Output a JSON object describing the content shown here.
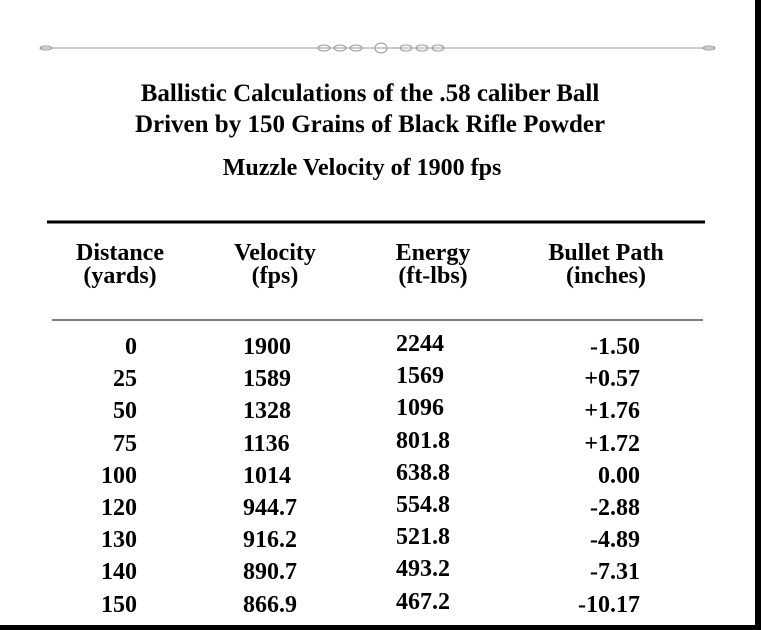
{
  "title": {
    "line1": "Ballistic Calculations of the .58 caliber Ball",
    "line2": "Driven by 150 Grains of Black Rifle Powder",
    "subtitle": "Muzzle Velocity of 1900 fps"
  },
  "table": {
    "headers": [
      [
        "Distance",
        "(yards)"
      ],
      [
        "Velocity",
        "(fps)"
      ],
      [
        "Energy",
        "(ft-lbs)"
      ],
      [
        "Bullet Path",
        "(inches)"
      ]
    ],
    "rows": [
      [
        "0",
        "1900",
        "2244",
        "-1.50"
      ],
      [
        "25",
        "1589",
        "1569",
        "+0.57"
      ],
      [
        "50",
        "1328",
        "1096",
        "+1.76"
      ],
      [
        "75",
        "1136",
        "801.8",
        "+1.72"
      ],
      [
        "100",
        "1014",
        "638.8",
        "0.00"
      ],
      [
        "120",
        "944.7",
        "554.8",
        "-2.88"
      ],
      [
        "130",
        "916.2",
        "521.8",
        "-4.89"
      ],
      [
        "140",
        "890.7",
        "493.2",
        "-7.31"
      ],
      [
        "150",
        "866.9",
        "467.2",
        "-10.17"
      ]
    ]
  }
}
